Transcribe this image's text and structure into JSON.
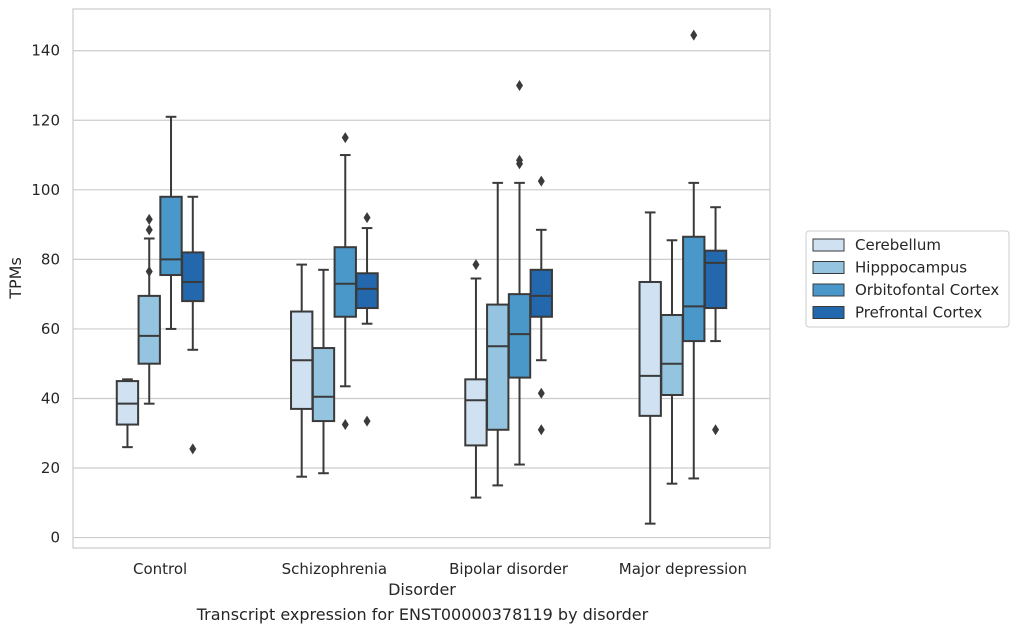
{
  "chart_data": {
    "type": "box",
    "caption": "Transcript expression for ENST00000378119 by disorder",
    "xlabel": "Disorder",
    "ylabel": "TPMs",
    "ylim": [
      -3,
      152
    ],
    "yticks": [
      0,
      20,
      40,
      60,
      80,
      100,
      120,
      140
    ],
    "grid": true,
    "legend_position": "right",
    "categories": [
      "Control",
      "Schizophrenia",
      "Bipolar disorder",
      "Major depression"
    ],
    "series": [
      {
        "name": "Cerebellum",
        "color": "#d0e1f2",
        "boxes": [
          {
            "whislo": 26,
            "q1": 32.5,
            "med": 38.5,
            "q3": 45,
            "whishi": 45.5,
            "fliers": []
          },
          {
            "whislo": 17.5,
            "q1": 37,
            "med": 51,
            "q3": 65,
            "whishi": 78.5,
            "fliers": []
          },
          {
            "whislo": 11.5,
            "q1": 26.5,
            "med": 39.5,
            "q3": 45.5,
            "whishi": 74.5,
            "fliers": [
              78.5
            ]
          },
          {
            "whislo": 4,
            "q1": 35,
            "med": 46.5,
            "q3": 73.5,
            "whishi": 93.5,
            "fliers": []
          }
        ]
      },
      {
        "name": "Hipppocampus",
        "color": "#94c4df",
        "boxes": [
          {
            "whislo": 38.5,
            "q1": 50,
            "med": 58,
            "q3": 69.5,
            "whishi": 86,
            "fliers": [
              76.5,
              88.5,
              91.5
            ]
          },
          {
            "whislo": 18.5,
            "q1": 33.5,
            "med": 40.5,
            "q3": 54.5,
            "whishi": 77,
            "fliers": []
          },
          {
            "whislo": 15,
            "q1": 31,
            "med": 55,
            "q3": 67,
            "whishi": 102,
            "fliers": []
          },
          {
            "whislo": 15.5,
            "q1": 41,
            "med": 50,
            "q3": 64,
            "whishi": 85.5,
            "fliers": []
          }
        ]
      },
      {
        "name": "Orbitofontal Cortex",
        "color": "#4a98c9",
        "boxes": [
          {
            "whislo": 60,
            "q1": 75.5,
            "med": 80,
            "q3": 98,
            "whishi": 121,
            "fliers": []
          },
          {
            "whislo": 43.5,
            "q1": 63.5,
            "med": 73,
            "q3": 83.5,
            "whishi": 110,
            "fliers": [
              32.5,
              115
            ]
          },
          {
            "whislo": 21,
            "q1": 46,
            "med": 58.5,
            "q3": 70,
            "whishi": 102,
            "fliers": [
              107.5,
              108.5,
              130
            ]
          },
          {
            "whislo": 17,
            "q1": 56.5,
            "med": 66.5,
            "q3": 86.5,
            "whishi": 102,
            "fliers": [
              144.5
            ]
          }
        ]
      },
      {
        "name": "Prefrontal Cortex",
        "color": "#2367ac",
        "boxes": [
          {
            "whislo": 54,
            "q1": 68,
            "med": 73.5,
            "q3": 82,
            "whishi": 98,
            "fliers": [
              25.5
            ]
          },
          {
            "whislo": 61.5,
            "q1": 66,
            "med": 71.5,
            "q3": 76,
            "whishi": 89,
            "fliers": [
              33.5,
              92
            ]
          },
          {
            "whislo": 51,
            "q1": 63.5,
            "med": 69.5,
            "q3": 77,
            "whishi": 88.5,
            "fliers": [
              31,
              41.5,
              102.5
            ]
          },
          {
            "whislo": 56.5,
            "q1": 66,
            "med": 79,
            "q3": 82.5,
            "whishi": 95,
            "fliers": [
              31
            ]
          }
        ]
      }
    ]
  }
}
